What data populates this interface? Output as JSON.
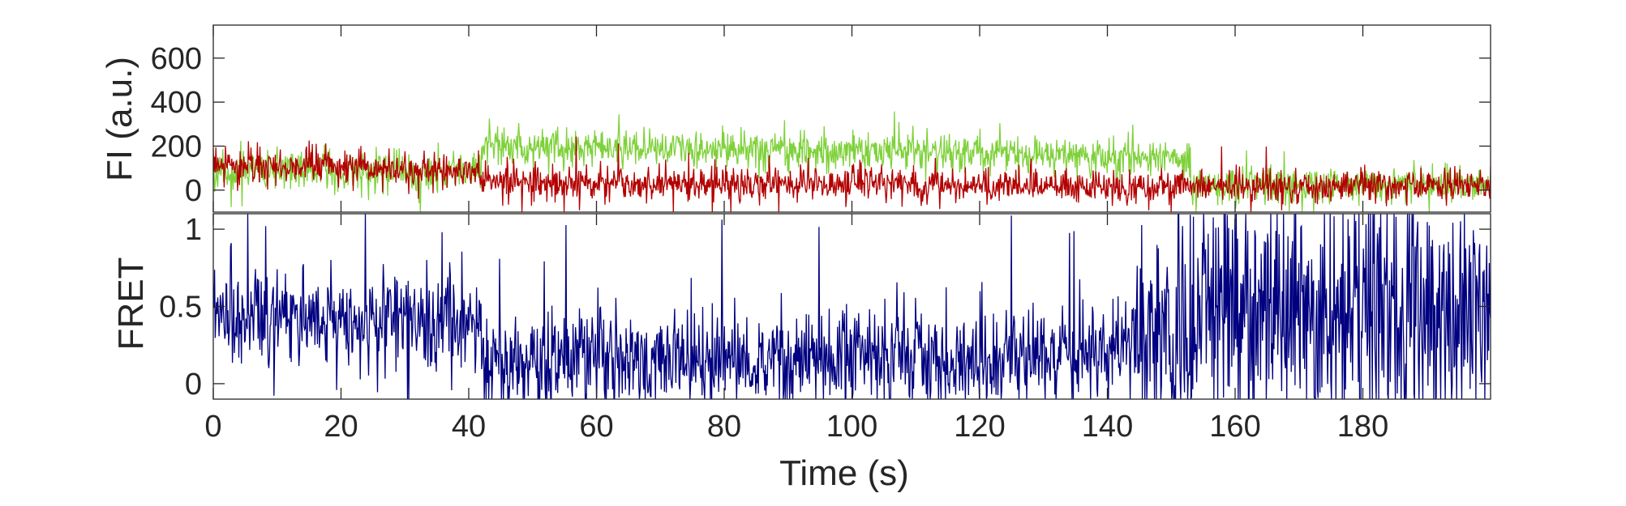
{
  "chart_data": [
    {
      "type": "line",
      "title": "",
      "ylabel": "FI (a.u.)",
      "xlabel": "",
      "xlim": [
        0,
        200
      ],
      "ylim": [
        -100,
        750
      ],
      "yticks": [
        0,
        200,
        400,
        600
      ],
      "ytick_labels": [
        "0",
        "200",
        "400",
        "600"
      ],
      "grid": false,
      "series": [
        {
          "color": "#7fd13b",
          "generator": {
            "seed": 11,
            "n": 2000,
            "noise": 42,
            "spike_prob": 0.03,
            "spike_amp": 150,
            "segments": [
              {
                "x_start": 0,
                "x_end": 42,
                "mean_start": 85,
                "mean_end": 85
              },
              {
                "x_start": 42,
                "x_end": 70,
                "mean_start": 200,
                "mean_end": 190
              },
              {
                "x_start": 70,
                "x_end": 120,
                "mean_start": 190,
                "mean_end": 170
              },
              {
                "x_start": 120,
                "x_end": 153,
                "mean_start": 165,
                "mean_end": 140
              },
              {
                "x_start": 153,
                "x_end": 200,
                "mean_start": 25,
                "mean_end": 25
              }
            ]
          }
        },
        {
          "color": "#b30000",
          "generator": {
            "seed": 23,
            "n": 2000,
            "noise": 38,
            "spike_prob": 0.02,
            "spike_amp": 130,
            "segments": [
              {
                "x_start": 0,
                "x_end": 42,
                "mean_start": 110,
                "mean_end": 85
              },
              {
                "x_start": 42,
                "x_end": 70,
                "mean_start": 35,
                "mean_end": 30
              },
              {
                "x_start": 70,
                "x_end": 153,
                "mean_start": 30,
                "mean_end": 15
              },
              {
                "x_start": 153,
                "x_end": 200,
                "mean_start": 15,
                "mean_end": 20
              }
            ]
          }
        }
      ]
    },
    {
      "type": "line",
      "title": "",
      "ylabel": "FRET",
      "xlabel": "Time (s)",
      "xlim": [
        0,
        200
      ],
      "ylim": [
        -0.1,
        1.1
      ],
      "yticks": [
        0,
        0.5,
        1
      ],
      "ytick_labels": [
        "0",
        "0.5",
        "1"
      ],
      "xticks": [
        0,
        20,
        40,
        60,
        80,
        100,
        120,
        140,
        160,
        180
      ],
      "xtick_labels": [
        "0",
        "20",
        "40",
        "60",
        "80",
        "100",
        "120",
        "140",
        "160",
        "180"
      ],
      "grid": false,
      "series": [
        {
          "color": "#000080",
          "generator": {
            "seed": 37,
            "n": 2000,
            "noise": 0.16,
            "spike_prob": 0.02,
            "spike_amp": 0.9,
            "segments": [
              {
                "x_start": 0,
                "x_end": 42,
                "mean_start": 0.45,
                "mean_end": 0.4
              },
              {
                "x_start": 42,
                "x_end": 60,
                "mean_start": 0.12,
                "mean_end": 0.15
              },
              {
                "x_start": 60,
                "x_end": 140,
                "mean_start": 0.15,
                "mean_end": 0.18
              },
              {
                "x_start": 140,
                "x_end": 153,
                "mean_start": 0.25,
                "mean_end": 0.35
              },
              {
                "x_start": 153,
                "x_end": 200,
                "mean_start": 0.45,
                "mean_end": 0.5
              }
            ],
            "late_spread": {
              "x_start": 145,
              "noise": 0.45
            }
          }
        }
      ]
    }
  ]
}
